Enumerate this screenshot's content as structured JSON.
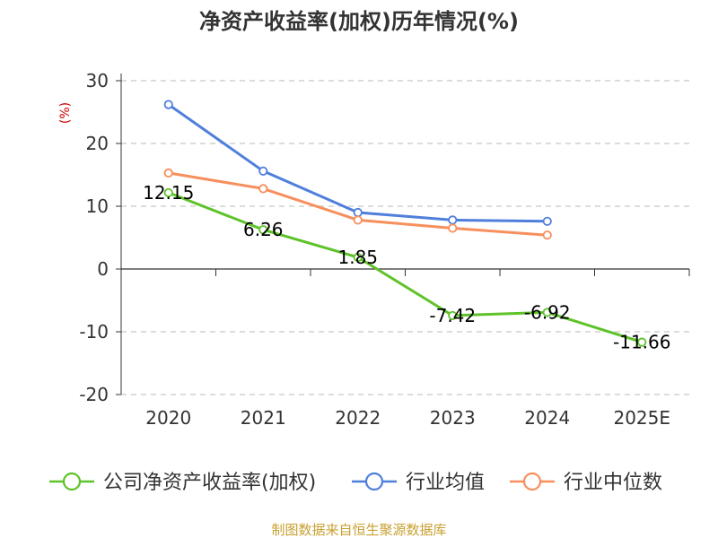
{
  "chart_data": {
    "type": "line",
    "title": "净资产收益率(加权)历年情况(%)",
    "ylabel": "(%)",
    "xlabel": "",
    "categories": [
      "2020",
      "2021",
      "2022",
      "2023",
      "2024",
      "2025E"
    ],
    "ylim": [
      -20,
      30
    ],
    "yticks": [
      -20,
      -10,
      0,
      10,
      20,
      30
    ],
    "ytick_labels": [
      "-20",
      "-10",
      "0",
      "10",
      "20",
      "30"
    ],
    "grid": true,
    "legend_position": "bottom",
    "series": [
      {
        "name": "公司净资产收益率(加权)",
        "color": "#5ec229",
        "values": [
          12.15,
          6.26,
          1.85,
          -7.42,
          -6.92,
          -11.66
        ],
        "labels": [
          "12.15",
          "6.26",
          "1.85",
          "-7.42",
          "-6.92",
          "-11.66"
        ]
      },
      {
        "name": "行业均值",
        "color": "#4f7fdc",
        "values": [
          26.2,
          15.6,
          9.0,
          7.8,
          7.6,
          null
        ]
      },
      {
        "name": "行业中位数",
        "color": "#f78f5d",
        "values": [
          15.3,
          12.8,
          7.8,
          6.5,
          5.4,
          null
        ]
      }
    ]
  },
  "colors": {
    "title": "#333333",
    "axis": "#333333",
    "grid": "#c8c8c8",
    "ylabel": "#cc0000",
    "source": "#c8a030"
  },
  "source_text": "制图数据来自恒生聚源数据库"
}
